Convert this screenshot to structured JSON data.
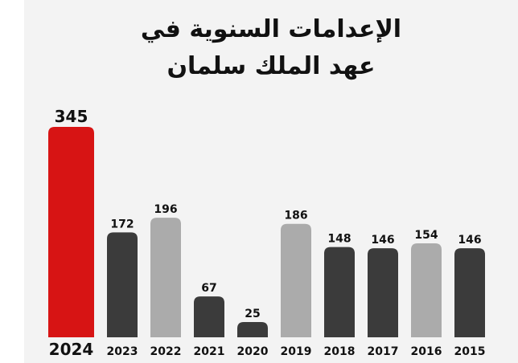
{
  "title_line1": "الإعدامات السنوية في",
  "title_line2": "عهد الملك سلمان",
  "chart_data": {
    "type": "bar",
    "title": "الإعدامات السنوية في عهد الملك سلمان",
    "categories": [
      "2024",
      "2023",
      "2022",
      "2021",
      "2020",
      "2019",
      "2018",
      "2017",
      "2016",
      "2015"
    ],
    "values": [
      345,
      172,
      196,
      67,
      25,
      186,
      148,
      146,
      154,
      146
    ],
    "bar_colors": [
      "#d71414",
      "#3b3b3b",
      "#ababab",
      "#3b3b3b",
      "#3b3b3b",
      "#ababab",
      "#3b3b3b",
      "#3b3b3b",
      "#ababab",
      "#3b3b3b"
    ],
    "ylim": [
      0,
      345
    ],
    "grid": false,
    "legend": "none",
    "data_labels": true
  }
}
